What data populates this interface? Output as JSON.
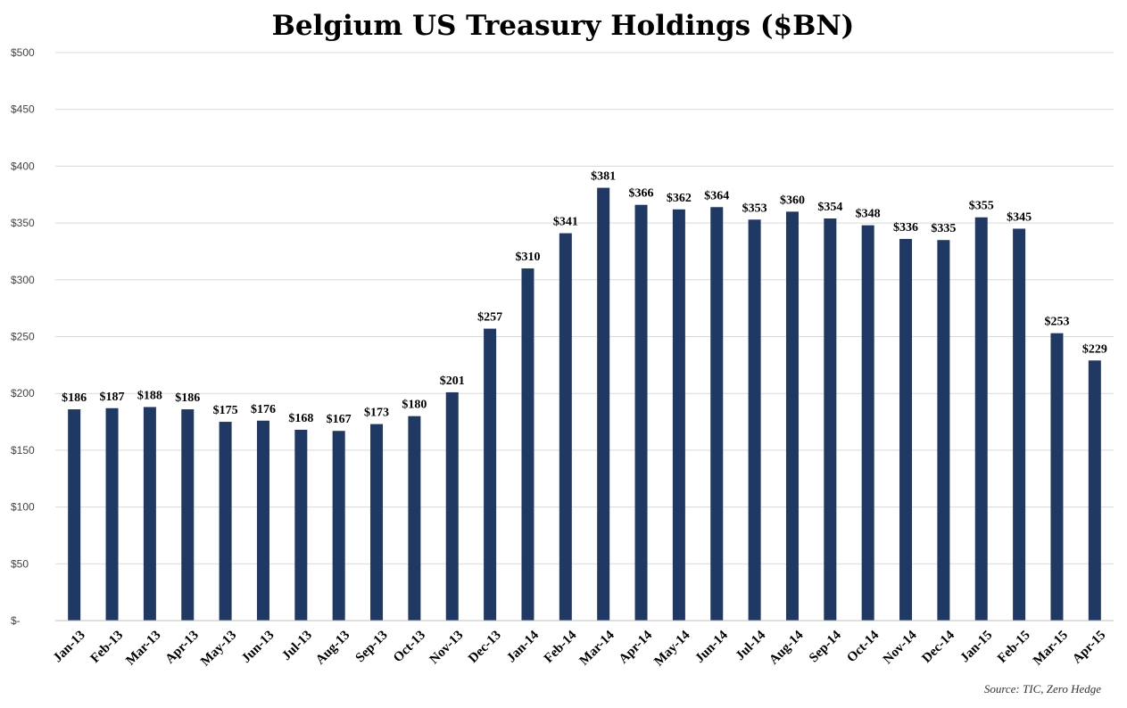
{
  "chart_data": {
    "type": "bar",
    "title": "Belgium US Treasury Holdings ($BN)",
    "categories": [
      "Jan-13",
      "Feb-13",
      "Mar-13",
      "Apr-13",
      "May-13",
      "Jun-13",
      "Jul-13",
      "Aug-13",
      "Sep-13",
      "Oct-13",
      "Nov-13",
      "Dec-13",
      "Jan-14",
      "Feb-14",
      "Mar-14",
      "Apr-14",
      "May-14",
      "Jun-14",
      "Jul-14",
      "Aug-14",
      "Sep-14",
      "Oct-14",
      "Nov-14",
      "Dec-14",
      "Jan-15",
      "Feb-15",
      "Mar-15",
      "Apr-15"
    ],
    "values": [
      186,
      187,
      188,
      186,
      175,
      176,
      168,
      167,
      173,
      180,
      201,
      257,
      310,
      341,
      381,
      366,
      362,
      364,
      353,
      360,
      354,
      348,
      336,
      335,
      355,
      345,
      253,
      229
    ],
    "data_labels": [
      "$186",
      "$187",
      "$188",
      "$186",
      "$175",
      "$176",
      "$168",
      "$167",
      "$173",
      "$180",
      "$201",
      "$257",
      "$310",
      "$341",
      "$381",
      "$366",
      "$362",
      "$364",
      "$353",
      "$360",
      "$354",
      "$348",
      "$336",
      "$335",
      "$355",
      "$345",
      "$253",
      "$229"
    ],
    "y_ticks": [
      0,
      50,
      100,
      150,
      200,
      250,
      300,
      350,
      400,
      450,
      500
    ],
    "y_tick_labels": [
      "$-",
      "$50",
      "$100",
      "$150",
      "$200",
      "$250",
      "$300",
      "$350",
      "$400",
      "$450",
      "$500"
    ],
    "ylim": [
      0,
      500
    ],
    "xlabel": "",
    "ylabel": "",
    "grid": true,
    "legend": "none",
    "bar_color": "#1f3864",
    "source": "Source: TIC, Zero Hedge"
  }
}
